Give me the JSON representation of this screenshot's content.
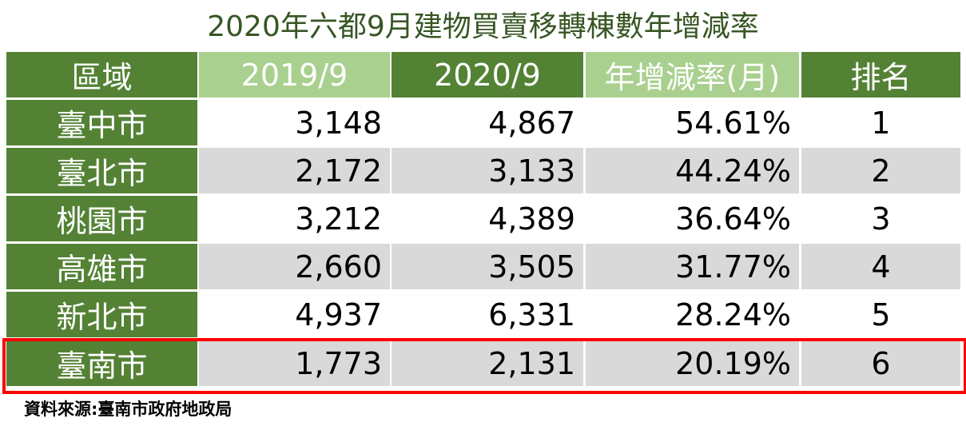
{
  "title": "2020年六都9月建物買賣移轉棟數年增減率",
  "table": {
    "header": [
      "區域",
      "2019/9",
      "2020/9",
      "年增減率(月)",
      "排名"
    ],
    "rows": [
      [
        "臺中市",
        "3,148",
        "4,867",
        "54.61%",
        "1"
      ],
      [
        "臺北市",
        "2,172",
        "3,133",
        "44.24%",
        "2"
      ],
      [
        "桃園市",
        "3,212",
        "4,389",
        "36.64%",
        "3"
      ],
      [
        "高雄市",
        "2,660",
        "3,505",
        "31.77%",
        "4"
      ],
      [
        "新北市",
        "4,937",
        "6,331",
        "28.24%",
        "5"
      ],
      [
        "臺南市",
        "1,773",
        "2,131",
        "20.19%",
        "6"
      ]
    ]
  },
  "source": "資料來源:臺南市政府地政局"
}
